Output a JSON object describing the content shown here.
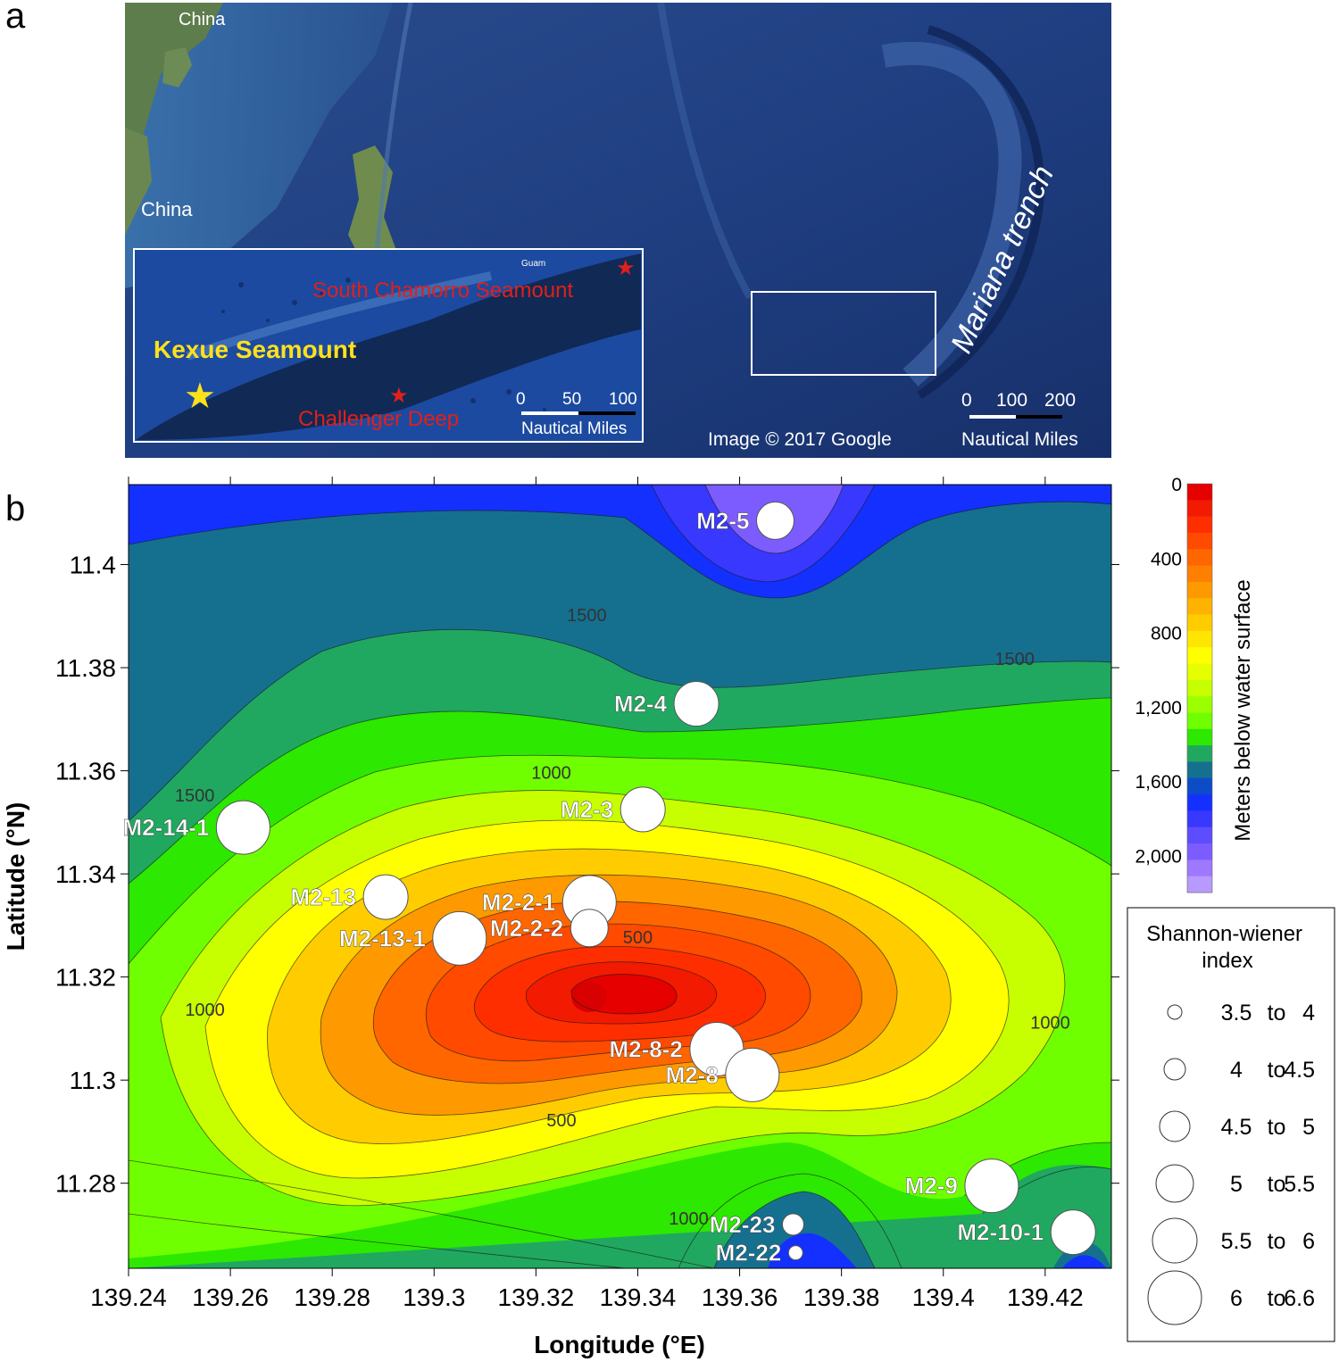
{
  "panel_letters": {
    "a": "a",
    "b": "b"
  },
  "map_a": {
    "labels": {
      "china_top": "China",
      "china_left": "China",
      "trench": "Mariana trench",
      "copyright": "Image © 2017 Google"
    },
    "scale": {
      "ticks": [
        "0",
        "100",
        "200"
      ],
      "unit": "Nautical Miles"
    },
    "inset": {
      "labels": {
        "kexue": "Kexue Seamount",
        "south_chamorro": "South Chamorro Seamount",
        "challenger": "Challenger Deep",
        "guam": "Guam"
      },
      "scale": {
        "ticks": [
          "0",
          "50",
          "100"
        ],
        "unit": "Nautical Miles"
      }
    },
    "colors": {
      "ocean": "#1c3a78",
      "land": "#5a7a4a",
      "site_star": "#ffe11a",
      "deep_star": "#e0201a",
      "trench_label": "#ffffff"
    }
  },
  "chart_data": {
    "type": "contour",
    "xlabel": "Longitude (°E)",
    "ylabel": "Latitude (°N)",
    "xlim": [
      139.24,
      139.433
    ],
    "ylim": [
      11.2635,
      11.4155
    ],
    "x_ticks": [
      "139.24",
      "139.26",
      "139.28",
      "139.3",
      "139.32",
      "139.34",
      "139.36",
      "139.38",
      "139.4",
      "139.42"
    ],
    "y_ticks": [
      "11.28",
      "11.3",
      "11.32",
      "11.34",
      "11.36",
      "11.38",
      "11.4"
    ],
    "contour_labels": [
      {
        "text": "1500",
        "x": 139.33,
        "y": 11.389
      },
      {
        "text": "1500",
        "x": 139.414,
        "y": 11.3805
      },
      {
        "text": "1500",
        "x": 139.253,
        "y": 11.354
      },
      {
        "text": "1000",
        "x": 139.323,
        "y": 11.3585
      },
      {
        "text": "1000",
        "x": 139.255,
        "y": 11.3125
      },
      {
        "text": "1000",
        "x": 139.421,
        "y": 11.31
      },
      {
        "text": "1000",
        "x": 139.35,
        "y": 11.272
      },
      {
        "text": "500",
        "x": 139.34,
        "y": 11.3265
      },
      {
        "text": "500",
        "x": 139.325,
        "y": 11.291
      }
    ],
    "stations": [
      {
        "name": "M2-5",
        "lon": 139.367,
        "lat": 11.4085,
        "index_class": "5 to 5.5"
      },
      {
        "name": "M2-4",
        "lon": 139.3515,
        "lat": 11.373,
        "index_class": "5.5 to 6"
      },
      {
        "name": "M2-3",
        "lon": 139.341,
        "lat": 11.3525,
        "index_class": "5.5 to 6"
      },
      {
        "name": "M2-14-1",
        "lon": 139.2625,
        "lat": 11.349,
        "index_class": "6 to 6.6"
      },
      {
        "name": "M2-13",
        "lon": 139.2905,
        "lat": 11.3355,
        "index_class": "5.5 to 6"
      },
      {
        "name": "M2-2-1",
        "lon": 139.3305,
        "lat": 11.3345,
        "index_class": "6 to 6.6"
      },
      {
        "name": "M2-2-2",
        "lon": 139.3305,
        "lat": 11.3295,
        "index_class": "5 to 5.5"
      },
      {
        "name": "M2-13-1",
        "lon": 139.305,
        "lat": 11.3275,
        "index_class": "6 to 6.6"
      },
      {
        "name": "M2-8-2",
        "lon": 139.3555,
        "lat": 11.306,
        "index_class": "6 to 6.6"
      },
      {
        "name": "M2-8",
        "lon": 139.3625,
        "lat": 11.301,
        "index_class": "6 to 6.6"
      },
      {
        "name": "M2-9",
        "lon": 139.4095,
        "lat": 11.2795,
        "index_class": "6 to 6.6"
      },
      {
        "name": "M2-23",
        "lon": 139.3705,
        "lat": 11.272,
        "index_class": "4 to 4.5"
      },
      {
        "name": "M2-22",
        "lon": 139.371,
        "lat": 11.2665,
        "index_class": "3.5 to 4"
      },
      {
        "name": "M2-10-1",
        "lon": 139.4255,
        "lat": 11.2705,
        "index_class": "5.5 to 6"
      }
    ],
    "depth_scale": {
      "label": "Meters below water surface",
      "ticks": [
        "0",
        "400",
        "800",
        "1,200",
        "1,600",
        "2,000"
      ],
      "range": [
        0,
        2200
      ],
      "colors": [
        "#e60000",
        "#f21a00",
        "#ff2e00",
        "#ff4a00",
        "#ff6600",
        "#ff7f00",
        "#ff9900",
        "#ffb300",
        "#ffcc00",
        "#ffe600",
        "#ffff00",
        "#e6ff00",
        "#c8ff00",
        "#9cff00",
        "#70ff00",
        "#2de800",
        "#20a860",
        "#157090",
        "#0d4cc8",
        "#1430ff",
        "#3838ff",
        "#5e4cff",
        "#7c5cff",
        "#9e78ff",
        "#b89aff"
      ]
    },
    "legend": {
      "title": "Shannon-wiener index",
      "items": [
        {
          "label": "3.5 to 4",
          "from": "3.5",
          "to_word": "to",
          "upto": "4"
        },
        {
          "label": "4 to 4.5",
          "from": "4",
          "to_word": "to",
          "upto": "4.5"
        },
        {
          "label": "4.5 to 5",
          "from": "4.5",
          "to_word": "to",
          "upto": "5"
        },
        {
          "label": "5 to 5.5",
          "from": "5",
          "to_word": "to",
          "upto": "5.5"
        },
        {
          "label": "5.5 to 6",
          "from": "5.5",
          "to_word": "to",
          "upto": "6"
        },
        {
          "label": "6 to 6.6",
          "from": "6",
          "to_word": "to",
          "upto": "6.6"
        }
      ]
    }
  }
}
